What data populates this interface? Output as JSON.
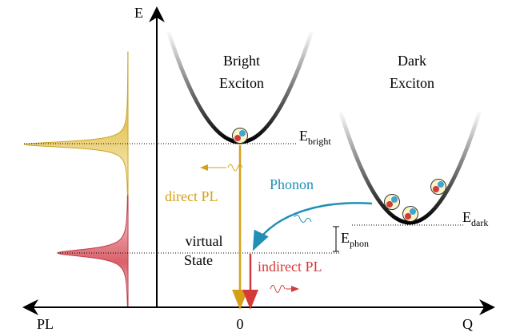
{
  "axes": {
    "energy": "E",
    "momentum": "Q",
    "intensity": "PL",
    "origin": "0"
  },
  "bright_exciton": {
    "line1": "Bright",
    "line2": "Exciton"
  },
  "dark_exciton": {
    "line1": "Dark",
    "line2": "Exciton"
  },
  "levels": {
    "bright": {
      "symbol": "E",
      "subscript": "bright"
    },
    "dark": {
      "symbol": "E",
      "subscript": "dark"
    },
    "phonon": {
      "symbol": "E",
      "subscript": "phon"
    }
  },
  "processes": {
    "direct": "direct PL",
    "phonon": "Phonon",
    "indirect": "indirect PL"
  },
  "virtual_state": {
    "line1": "virtual",
    "line2": "State"
  }
}
